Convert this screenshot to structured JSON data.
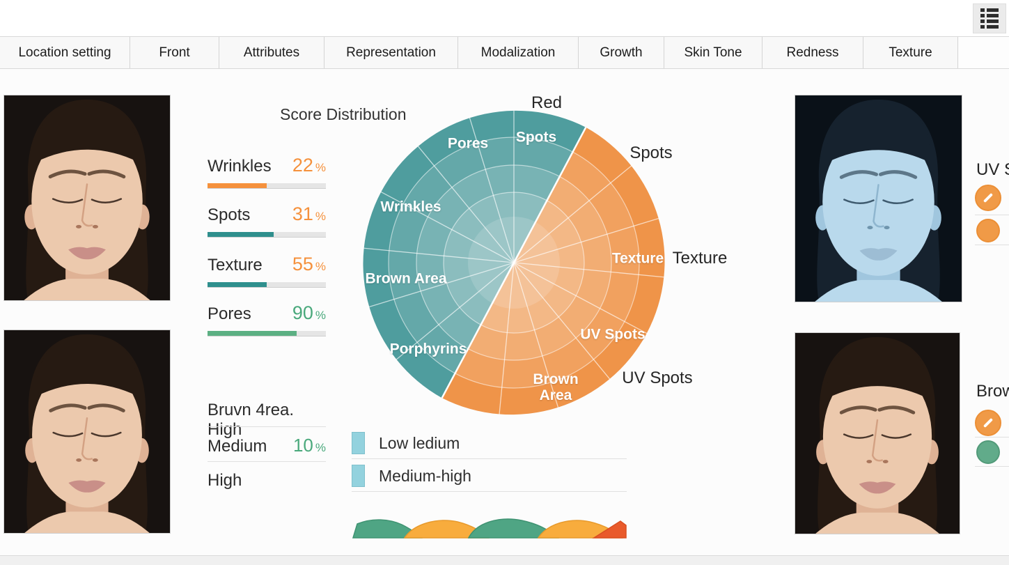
{
  "header": {
    "menu_icon": "list-view-icon"
  },
  "tabs": [
    {
      "label": "Location setting"
    },
    {
      "label": "Front"
    },
    {
      "label": "Attributes"
    },
    {
      "label": "Representation"
    },
    {
      "label": "Modalization"
    },
    {
      "label": "Growth"
    },
    {
      "label": "Skin Tone"
    },
    {
      "label": "Redness"
    },
    {
      "label": "Texture"
    }
  ],
  "photos": {
    "top_left": "front-face-photo",
    "bottom_left": "front-face-photo-2",
    "top_right": "uv-mode-face-photo",
    "bottom_right": "front-face-photo-3"
  },
  "score_panel": {
    "title": "Score Distribution",
    "rows": [
      {
        "label": "Wrinkles",
        "value": "22",
        "unit": "%",
        "value_color": "#f5913c",
        "bar_color": "#f5913c",
        "bar_fill": 50
      },
      {
        "label": "Spots",
        "value": "31",
        "unit": "%",
        "value_color": "#f5913c",
        "bar_color": "#2f8f8d",
        "bar_fill": 56
      },
      {
        "label": "Texture",
        "value": "55",
        "unit": "%",
        "value_color": "#f5913c",
        "bar_color": "#2f8f8d",
        "bar_fill": 50
      },
      {
        "label": "Pores",
        "value": "90",
        "unit": "%",
        "value_color": "#4aa97c",
        "bar_color": "#5cb083",
        "bar_fill": 75
      }
    ]
  },
  "level_panel": {
    "title": "Bruvn 4rea. High",
    "rows": [
      {
        "label": "Medium",
        "value": "10",
        "unit": "%"
      },
      {
        "label": "High",
        "value": "",
        "unit": ""
      }
    ]
  },
  "legend": {
    "swatch_color": "#93d2de",
    "items": [
      {
        "label": "Low ledium"
      },
      {
        "label": "Medium-high"
      }
    ]
  },
  "chart_data": {
    "type": "sunburst",
    "description": "Radial skin-analysis wheel: teal upper-left half and orange lower-right half, 4 concentric rings getting lighter toward center, white radial spokes",
    "split_angle_deg": 28,
    "rings": 4,
    "halves": [
      {
        "name": "teal-half",
        "color": "#4f9d9e",
        "sectors": [
          "Spots",
          "Pores",
          "Wrinkles",
          "Brown Area",
          "Porphyrins"
        ]
      },
      {
        "name": "orange-half",
        "color": "#ef9449",
        "sectors": [
          "Spots",
          "Texture",
          "UV Spots",
          "Brown Area"
        ]
      }
    ],
    "outer_labels": [
      "Red",
      "Spots",
      "Texture",
      "UV Spots"
    ],
    "scores": {
      "Wrinkles": 22,
      "Spots": 31,
      "Texture": 55,
      "Pores": 90,
      "Brown Area Medium": 10
    },
    "legend_position": "below-left",
    "trend_strip_colors": [
      "#4fa584",
      "#f8ac3d",
      "#4fa584",
      "#f8ac3d",
      "#e95a2b"
    ]
  },
  "right_rail": {
    "top": {
      "label": "UV S",
      "edit_icon": "edit-pencil-icon",
      "dot_color": "#f09a47"
    },
    "bottom": {
      "label": "Brow",
      "edit_icon": "edit-pencil-icon",
      "dot_color": "#61ab8a"
    }
  },
  "colors": {
    "accent_orange": "#f5913c",
    "teal": "#2f8f8d",
    "green": "#4aa97c",
    "legend_blue": "#93d2de",
    "wave_green": "#4fa584",
    "wave_orange": "#f8ac3d",
    "wave_red": "#e95a2b"
  }
}
